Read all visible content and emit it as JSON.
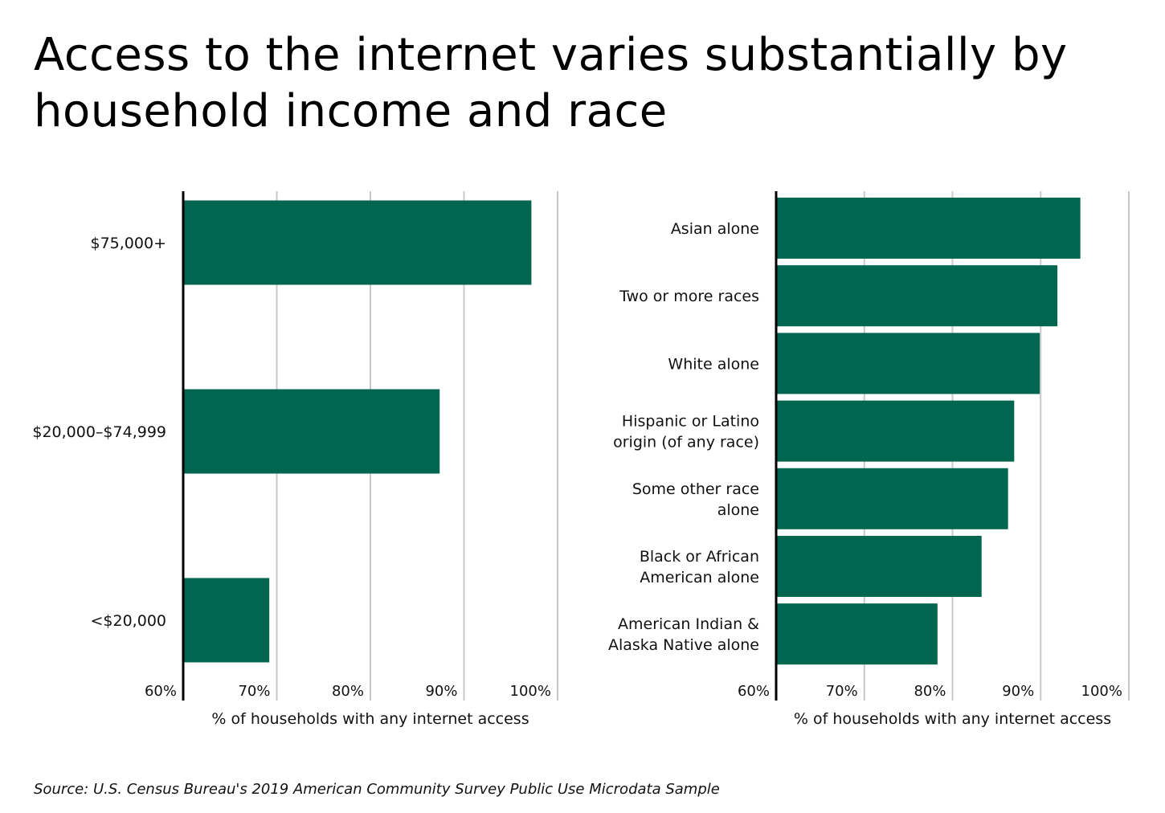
{
  "title": "Access to the internet varies substantially by household income and race",
  "source": "Source:  U.S. Census Bureau's 2019 American Community Survey Public Use Microdata Sample",
  "colors": {
    "bar": "#00664f",
    "grid": "#c8c8c8",
    "axis": "#000000"
  },
  "chart_data": [
    {
      "type": "bar",
      "orientation": "horizontal",
      "title": "",
      "categories": [
        "$75,000+",
        "$20,000–$74,999",
        "<$20,000"
      ],
      "values": [
        97.2,
        87.4,
        69.2
      ],
      "xlabel": "% of households with any internet access",
      "ylabel": "",
      "xlim": [
        60,
        100
      ],
      "xticks": [
        "60%",
        "70%",
        "80%",
        "90%",
        "100%"
      ],
      "grid": true,
      "legend": "none"
    },
    {
      "type": "bar",
      "orientation": "horizontal",
      "title": "",
      "categories": [
        "Asian alone",
        "Two or more races",
        "White alone",
        "Hispanic or Latino origin (of any race)",
        "Some other race alone",
        "Black or African American alone",
        "American Indian & Alaska Native alone"
      ],
      "category_lines": [
        [
          "Asian alone"
        ],
        [
          "Two or more races"
        ],
        [
          "White alone"
        ],
        [
          "Hispanic or Latino",
          "origin (of any race)"
        ],
        [
          "Some other race",
          "alone"
        ],
        [
          "Black or African",
          "American alone"
        ],
        [
          "American Indian &",
          "Alaska Native alone"
        ]
      ],
      "values": [
        94.5,
        91.9,
        89.9,
        87.0,
        86.3,
        83.3,
        78.3
      ],
      "xlabel": "% of households with any internet access",
      "ylabel": "",
      "xlim": [
        60,
        100
      ],
      "xticks": [
        "60%",
        "70%",
        "80%",
        "90%",
        "100%"
      ],
      "grid": true,
      "legend": "none"
    }
  ]
}
